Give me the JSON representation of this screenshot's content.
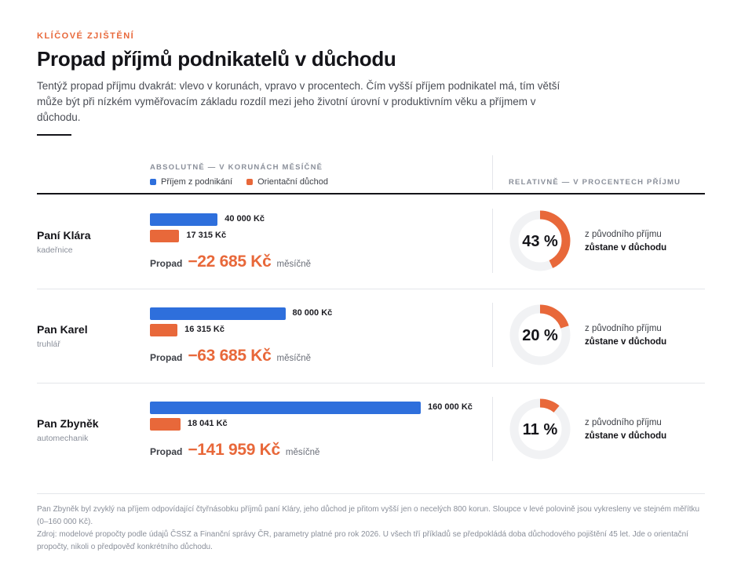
{
  "eyebrow": "KLÍČOVÉ ZJIŠTĚNÍ",
  "title": "Propad příjmů podnikatelů v důchodu",
  "intro": "Tentýž propad příjmu dvakrát: vlevo v korunách, vpravo v procentech. Čím vyšší příjem podnikatel má, tím větší může být při nízkém vyměřovacím základu rozdíl mezi jeho životní úrovní v produktivním věku a příjmem v důchodu.",
  "columns": {
    "absolute": "ABSOLUTNĚ — V KORUNÁCH MĚSÍČNĚ",
    "relative": "RELATIVNĚ — V PROCENTECH PŘÍJMU"
  },
  "legend": {
    "income": "Příjem z podnikání",
    "pension": "Orientační důchod"
  },
  "colors": {
    "income": "#2e6fdc",
    "pension": "#e8683a",
    "track": "#f1f2f4"
  },
  "drop_word": "Propad",
  "drop_unit": "měsíčně",
  "donut_text_1": "z původního příjmu",
  "donut_text_2": "zůstane v důchodu",
  "chart_data": {
    "type": "bar",
    "scale_max": 160000,
    "series": [
      {
        "name": "Příjem z podnikání",
        "values": [
          40000,
          80000,
          160000
        ]
      },
      {
        "name": "Orientační důchod",
        "values": [
          17315,
          16315,
          18041
        ]
      }
    ],
    "rows": [
      {
        "name": "Paní Klára",
        "role": "kadeřnice",
        "income": 40000,
        "income_label": "40 000 Kč",
        "pension": 17315,
        "pension_label": "17 315 Kč",
        "drop_label": "−22 685 Kč",
        "percent": 43,
        "percent_label": "43 %"
      },
      {
        "name": "Pan Karel",
        "role": "truhlář",
        "income": 80000,
        "income_label": "80 000 Kč",
        "pension": 16315,
        "pension_label": "16 315 Kč",
        "drop_label": "−63 685 Kč",
        "percent": 20,
        "percent_label": "20 %"
      },
      {
        "name": "Pan Zbyněk",
        "role": "automechanik",
        "income": 160000,
        "income_label": "160 000 Kč",
        "pension": 18041,
        "pension_label": "18 041 Kč",
        "drop_label": "−141 959 Kč",
        "percent": 11,
        "percent_label": "11 %"
      }
    ]
  },
  "footnote_1": "Pan Zbyněk byl zvyklý na příjem odpovídající čtyřnásobku příjmů paní Kláry, jeho důchod je přitom vyšší jen o necelých 800 korun. Sloupce v levé polovině jsou vykresleny ve stejném měřítku (0–160 000 Kč).",
  "footnote_2": "Zdroj: modelové propočty podle údajů ČSSZ a Finanční správy ČR, parametry platné pro rok 2026. U všech tří příkladů se předpokládá doba důchodového pojištění 45 let. Jde o orientační propočty, nikoli o předpověď konkrétního důchodu."
}
